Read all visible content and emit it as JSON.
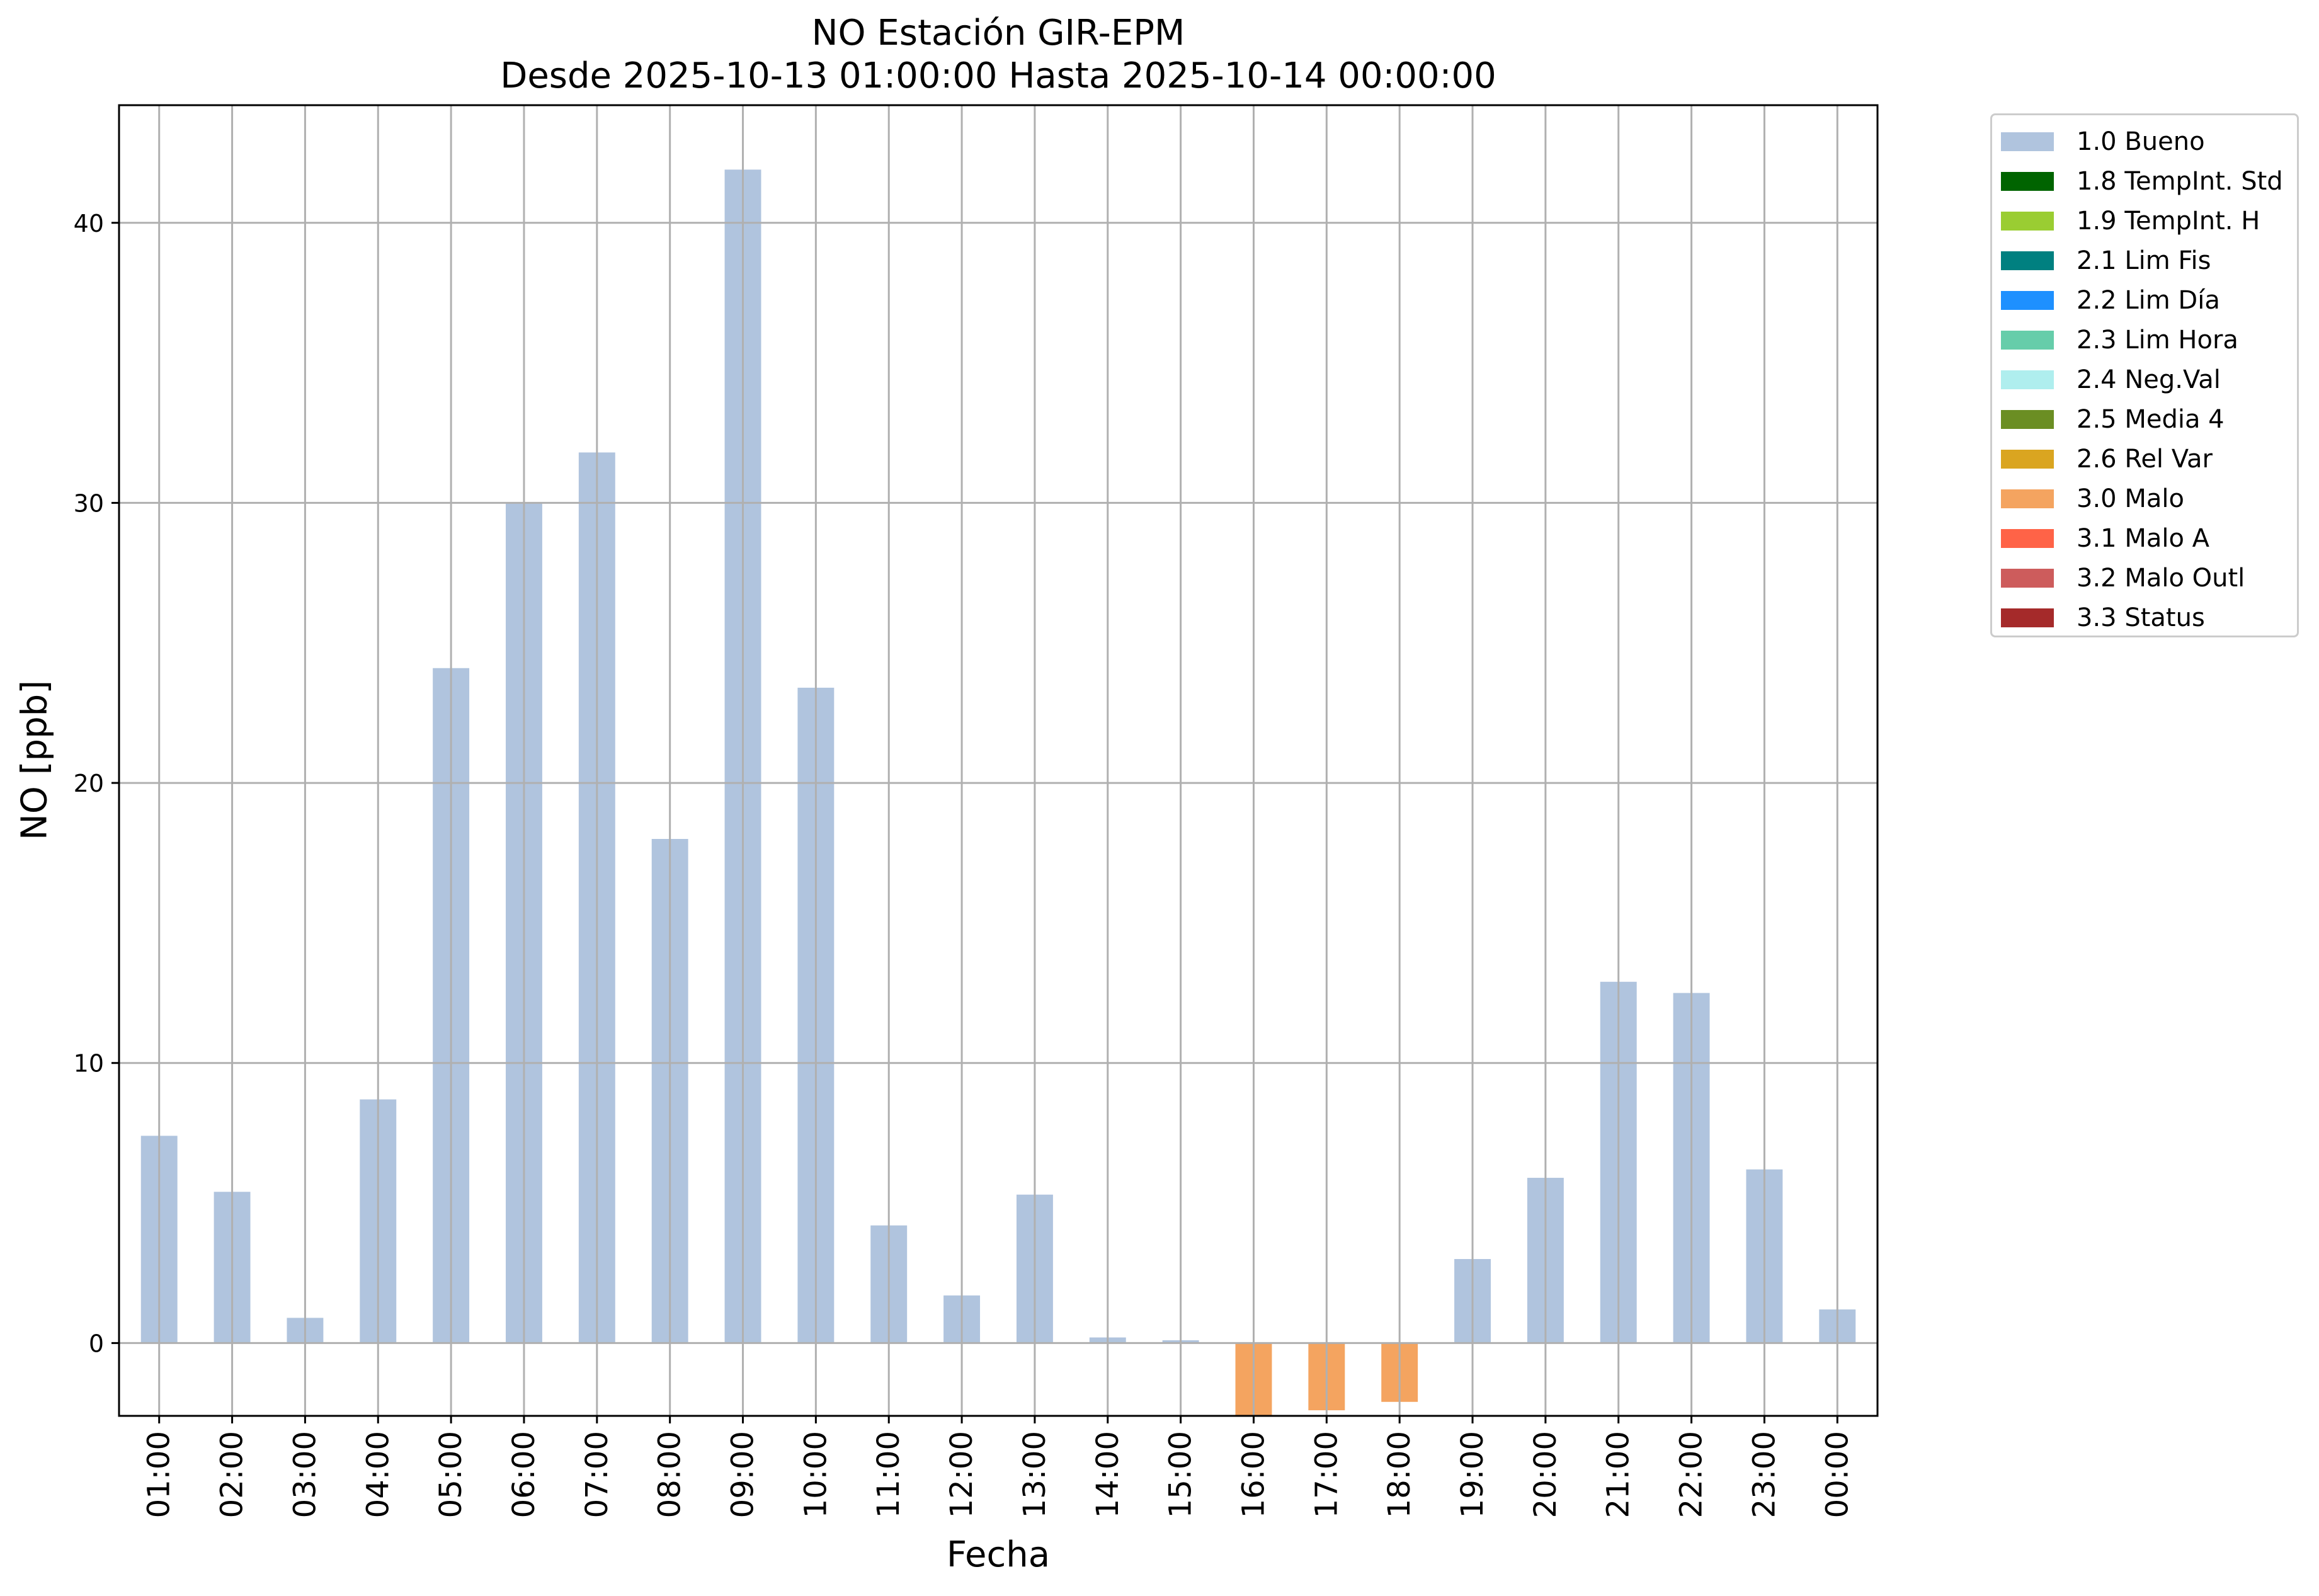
{
  "chart_data": {
    "type": "bar",
    "title": "NO Estación GIR-EPM",
    "subtitle": "Desde 2025-10-13 01:00:00 Hasta 2025-10-14 00:00:00",
    "xlabel": "Fecha",
    "ylabel": "NO [ppb]",
    "ylim": [
      -2.6,
      44.2
    ],
    "yticks": [
      0,
      10,
      20,
      30,
      40
    ],
    "grid": true,
    "legend_position": "outside top-right",
    "categories": [
      "01:00",
      "02:00",
      "03:00",
      "04:00",
      "05:00",
      "06:00",
      "07:00",
      "08:00",
      "09:00",
      "10:00",
      "11:00",
      "12:00",
      "13:00",
      "14:00",
      "15:00",
      "16:00",
      "17:00",
      "18:00",
      "19:00",
      "20:00",
      "21:00",
      "22:00",
      "23:00",
      "00:00"
    ],
    "values": [
      7.4,
      5.4,
      0.9,
      8.7,
      24.1,
      30.0,
      31.8,
      18.0,
      41.9,
      23.4,
      4.2,
      1.7,
      5.3,
      0.2,
      0.1,
      -2.6,
      -2.4,
      -2.1,
      3.0,
      5.9,
      12.9,
      12.5,
      6.2,
      1.2
    ],
    "flags": [
      "1.0 Bueno",
      "1.0 Bueno",
      "1.0 Bueno",
      "1.0 Bueno",
      "1.0 Bueno",
      "1.0 Bueno",
      "1.0 Bueno",
      "1.0 Bueno",
      "1.0 Bueno",
      "1.0 Bueno",
      "1.0 Bueno",
      "1.0 Bueno",
      "1.0 Bueno",
      "1.0 Bueno",
      "1.0 Bueno",
      "3.0 Malo",
      "3.0 Malo",
      "3.0 Malo",
      "1.0 Bueno",
      "1.0 Bueno",
      "1.0 Bueno",
      "1.0 Bueno",
      "1.0 Bueno",
      "1.0 Bueno"
    ],
    "legend": [
      {
        "name": "1.0 Bueno",
        "color": "#b0c4de"
      },
      {
        "name": "1.8 TempInt. Std",
        "color": "#006400"
      },
      {
        "name": "1.9 TempInt. H",
        "color": "#9acd32"
      },
      {
        "name": "2.1 Lim Fis",
        "color": "#008080"
      },
      {
        "name": "2.2 Lim Día",
        "color": "#1e90ff"
      },
      {
        "name": "2.3 Lim Hora",
        "color": "#66cdaa"
      },
      {
        "name": "2.4 Neg.Val",
        "color": "#afeeee"
      },
      {
        "name": "2.5 Media 4",
        "color": "#6b8e23"
      },
      {
        "name": "2.6 Rel Var",
        "color": "#daa520"
      },
      {
        "name": "3.0 Malo",
        "color": "#f4a460"
      },
      {
        "name": "3.1 Malo A",
        "color": "#ff6347"
      },
      {
        "name": "3.2 Malo Outl",
        "color": "#cd5c5c"
      },
      {
        "name": "3.3 Status",
        "color": "#a52a2a"
      }
    ]
  }
}
